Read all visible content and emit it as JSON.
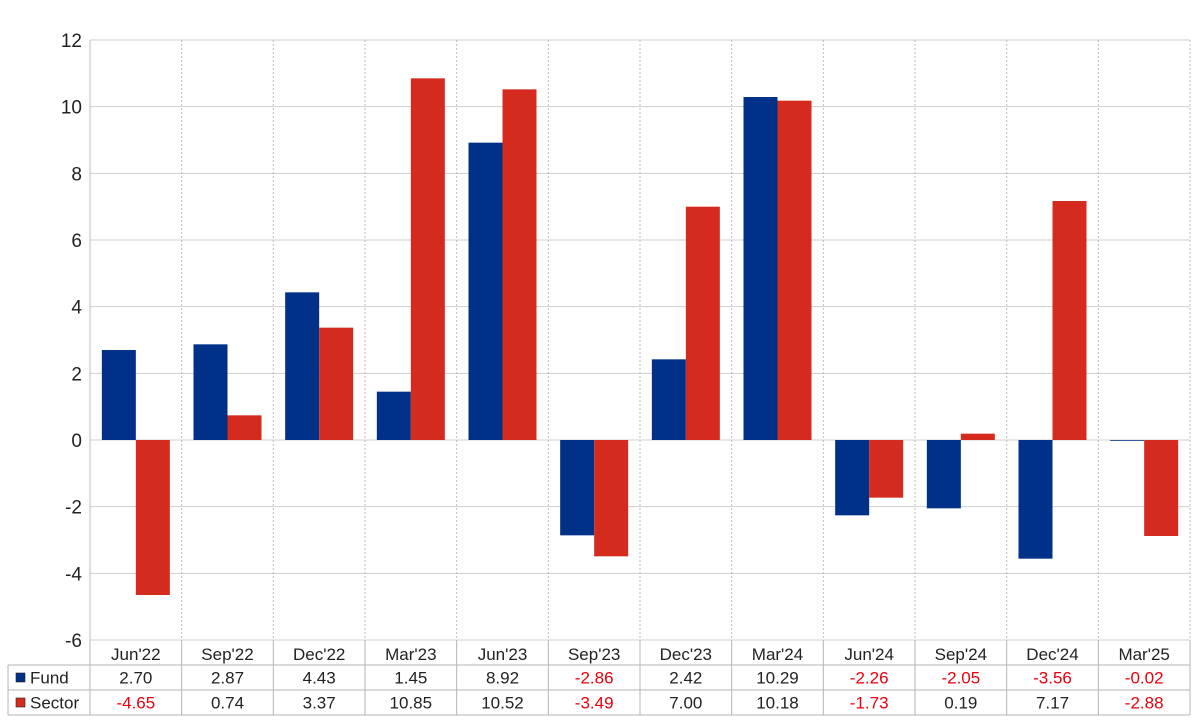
{
  "chart_data": {
    "type": "bar",
    "categories": [
      "Jun'22",
      "Sep'22",
      "Dec'22",
      "Mar'23",
      "Jun'23",
      "Sep'23",
      "Dec'23",
      "Mar'24",
      "Jun'24",
      "Sep'24",
      "Dec'24",
      "Mar'25"
    ],
    "series": [
      {
        "name": "Fund",
        "color": "#003087",
        "values": [
          2.7,
          2.87,
          4.43,
          1.45,
          8.92,
          -2.86,
          2.42,
          10.29,
          -2.26,
          -2.05,
          -3.56,
          -0.02
        ],
        "labels": [
          "2.70",
          "2.87",
          "4.43",
          "1.45",
          "8.92",
          "-2.86",
          "2.42",
          "10.29",
          "-2.26",
          "-2.05",
          "-3.56",
          "-0.02"
        ]
      },
      {
        "name": "Sector",
        "color": "#d52b1e",
        "values": [
          -4.65,
          0.74,
          3.37,
          10.85,
          10.52,
          -3.49,
          7.0,
          10.18,
          -1.73,
          0.19,
          7.17,
          -2.88
        ],
        "labels": [
          "-4.65",
          "0.74",
          "3.37",
          "10.85",
          "10.52",
          "-3.49",
          "7.00",
          "10.18",
          "-1.73",
          "0.19",
          "7.17",
          "-2.88"
        ]
      }
    ],
    "ylim": [
      -6,
      12
    ],
    "yticks": [
      "12",
      "10",
      "8",
      "6",
      "4",
      "2",
      "0",
      "-2",
      "-4",
      "-6"
    ],
    "title": "",
    "xlabel": "",
    "ylabel": "",
    "grid": true,
    "legend": "data table rows below the plot",
    "negative_value_color": "#e8000b",
    "positive_value_color": "#222222"
  }
}
